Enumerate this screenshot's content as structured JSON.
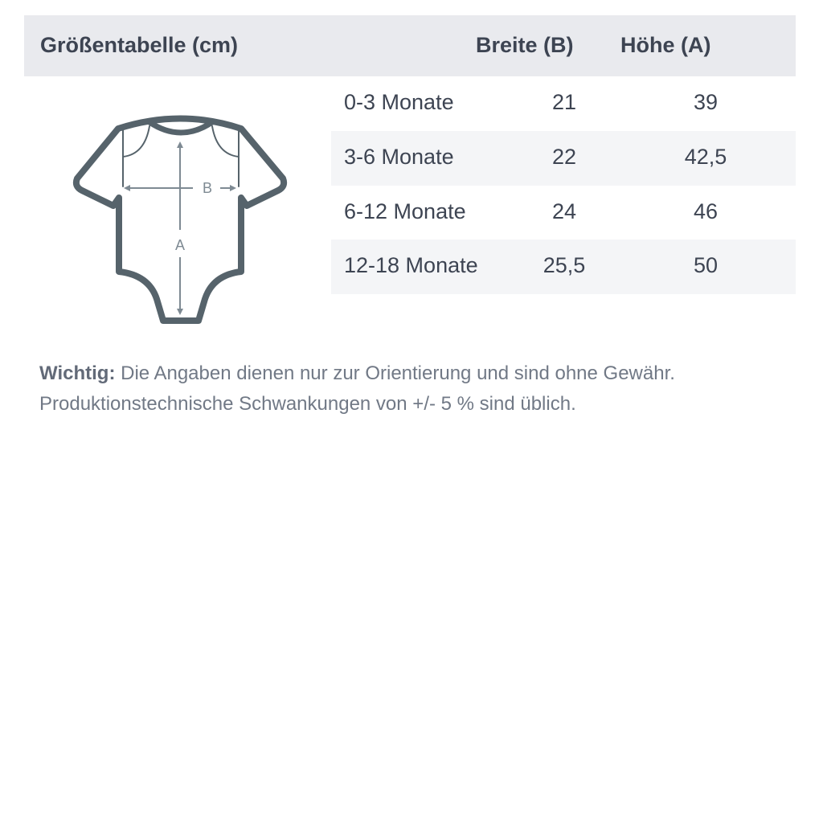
{
  "header": {
    "title": "Größentabelle (cm)",
    "col_width": "Breite (B)",
    "col_height": "Höhe (A)"
  },
  "rows": [
    {
      "size": "0-3 Monate",
      "width": "21",
      "height": "39"
    },
    {
      "size": "3-6 Monate",
      "width": "22",
      "height": "42,5"
    },
    {
      "size": "6-12 Monate",
      "width": "24",
      "height": "46"
    },
    {
      "size": "12-18 Monate",
      "width": "25,5",
      "height": "50"
    }
  ],
  "diagram": {
    "label_b": "B",
    "label_a": "A",
    "icon": "baby-bodysuit-icon",
    "color": "#56636b"
  },
  "note": {
    "label": "Wichtig:",
    "line1": " Die Angaben dienen nur zur Orientierung und sind ohne Gewähr.",
    "line2": "Produktionstechnische Schwankungen von +/- 5 % sind üblich."
  }
}
